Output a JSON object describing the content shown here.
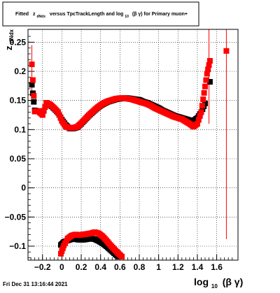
{
  "footer": {
    "timestamp": "Fri Dec 31 13:16:44 2021"
  },
  "chart_data": {
    "type": "scatter",
    "title_parts": {
      "a": "Fitted",
      "b": "z",
      "b_sub": "dNdx",
      "c": "versus TpcTrackLength and log",
      "c_sub": "10",
      "d": "(β γ) for Primary muon+"
    },
    "ylabel": {
      "main": "z",
      "sub": "dNdx"
    },
    "xlabel": {
      "main": "log",
      "sub": "10",
      "tail": "(β γ)"
    },
    "xlim": [
      -0.35,
      1.82
    ],
    "ylim": [
      -0.124,
      0.272
    ],
    "xticks": [
      -0.2,
      0,
      0.2,
      0.4,
      0.6,
      0.8,
      1,
      1.2,
      1.4,
      1.6
    ],
    "xtick_labels": [
      "−0.2",
      "0",
      "0.2",
      "0.4",
      "0.6",
      "0.8",
      "1",
      "1.2",
      "1.4",
      "1.6"
    ],
    "yticks": [
      -0.1,
      -0.05,
      0,
      0.05,
      0.1,
      0.15,
      0.2,
      0.25
    ],
    "ytick_labels": [
      "−0.1",
      "−0.05",
      "0",
      "0.05",
      "0.1",
      "0.15",
      "0.2",
      "0.25"
    ],
    "grid": true,
    "colors": {
      "series_black": "#000000",
      "series_red": "#ff0000"
    },
    "series": [
      {
        "color": "#000000",
        "upper": [
          [
            -0.31,
            0.177
          ],
          [
            -0.28,
            0.133
          ],
          [
            -0.24,
            0.131
          ],
          [
            -0.2,
            0.126
          ],
          [
            -0.16,
            0.145
          ],
          [
            -0.12,
            0.142
          ],
          [
            -0.08,
            0.136
          ],
          [
            -0.04,
            0.129
          ],
          [
            0.0,
            0.117
          ],
          [
            0.04,
            0.108
          ],
          [
            0.08,
            0.102
          ],
          [
            0.12,
            0.102
          ],
          [
            0.16,
            0.104
          ],
          [
            0.2,
            0.11
          ],
          [
            0.24,
            0.117
          ],
          [
            0.28,
            0.124
          ],
          [
            0.32,
            0.13
          ],
          [
            0.36,
            0.136
          ],
          [
            0.4,
            0.141
          ],
          [
            0.44,
            0.145
          ],
          [
            0.48,
            0.148
          ],
          [
            0.52,
            0.15
          ],
          [
            0.56,
            0.152
          ],
          [
            0.6,
            0.153
          ],
          [
            0.64,
            0.154
          ],
          [
            0.68,
            0.154
          ],
          [
            0.72,
            0.153
          ],
          [
            0.76,
            0.152
          ],
          [
            0.8,
            0.151
          ],
          [
            0.84,
            0.148
          ],
          [
            0.88,
            0.146
          ],
          [
            0.92,
            0.143
          ],
          [
            0.96,
            0.14
          ],
          [
            1.0,
            0.137
          ],
          [
            1.04,
            0.133
          ],
          [
            1.08,
            0.13
          ],
          [
            1.12,
            0.127
          ],
          [
            1.16,
            0.124
          ],
          [
            1.2,
            0.122
          ],
          [
            1.24,
            0.12
          ],
          [
            1.28,
            0.118
          ],
          [
            1.32,
            0.116
          ],
          [
            1.36,
            0.115
          ],
          [
            1.4,
            0.12
          ],
          [
            1.44,
            0.13
          ],
          [
            1.48,
            0.145
          ],
          [
            1.53,
            0.182
          ]
        ],
        "lower": [
          [
            -0.01,
            -0.098
          ],
          [
            0.02,
            -0.093
          ],
          [
            0.06,
            -0.09
          ],
          [
            0.1,
            -0.088
          ],
          [
            0.14,
            -0.088
          ],
          [
            0.18,
            -0.089
          ],
          [
            0.22,
            -0.089
          ],
          [
            0.26,
            -0.088
          ],
          [
            0.3,
            -0.087
          ],
          [
            0.34,
            -0.088
          ],
          [
            0.38,
            -0.091
          ],
          [
            0.42,
            -0.095
          ],
          [
            0.46,
            -0.1
          ],
          [
            0.5,
            -0.106
          ],
          [
            0.54,
            -0.112
          ],
          [
            0.58,
            -0.118
          ]
        ]
      },
      {
        "color": "#ff0000",
        "upper": [
          [
            -0.31,
            0.212
          ],
          [
            -0.28,
            0.131
          ],
          [
            -0.24,
            0.132
          ],
          [
            -0.2,
            0.125
          ],
          [
            -0.16,
            0.146
          ],
          [
            -0.12,
            0.143
          ],
          [
            -0.08,
            0.137
          ],
          [
            -0.04,
            0.13
          ],
          [
            0.0,
            0.115
          ],
          [
            0.04,
            0.105
          ],
          [
            0.08,
            0.103
          ],
          [
            0.12,
            0.103
          ],
          [
            0.16,
            0.105
          ],
          [
            0.2,
            0.111
          ],
          [
            0.24,
            0.118
          ],
          [
            0.28,
            0.125
          ],
          [
            0.32,
            0.131
          ],
          [
            0.36,
            0.137
          ],
          [
            0.4,
            0.142
          ],
          [
            0.44,
            0.146
          ],
          [
            0.48,
            0.149
          ],
          [
            0.52,
            0.151
          ],
          [
            0.56,
            0.153
          ],
          [
            0.6,
            0.154
          ],
          [
            0.64,
            0.154
          ],
          [
            0.68,
            0.153
          ],
          [
            0.72,
            0.152
          ],
          [
            0.76,
            0.15
          ],
          [
            0.8,
            0.148
          ],
          [
            0.84,
            0.146
          ],
          [
            0.88,
            0.144
          ],
          [
            0.92,
            0.141
          ],
          [
            0.96,
            0.137
          ],
          [
            1.0,
            0.134
          ],
          [
            1.04,
            0.131
          ],
          [
            1.08,
            0.128
          ],
          [
            1.12,
            0.125
          ],
          [
            1.16,
            0.122
          ],
          [
            1.2,
            0.12
          ],
          [
            1.24,
            0.118
          ],
          [
            1.28,
            0.114
          ],
          [
            1.32,
            0.11
          ],
          [
            1.36,
            0.105
          ],
          [
            1.4,
            0.11
          ],
          [
            1.44,
            0.13
          ],
          [
            1.47,
            0.163
          ],
          [
            1.5,
            0.196
          ],
          [
            1.53,
            0.218
          ],
          [
            1.7,
            0.235
          ]
        ],
        "lower": [
          [
            -0.01,
            -0.113
          ],
          [
            0.02,
            -0.099
          ],
          [
            0.06,
            -0.087
          ],
          [
            0.1,
            -0.082
          ],
          [
            0.14,
            -0.08
          ],
          [
            0.18,
            -0.081
          ],
          [
            0.22,
            -0.08
          ],
          [
            0.26,
            -0.079
          ],
          [
            0.3,
            -0.078
          ],
          [
            0.34,
            -0.076
          ],
          [
            0.38,
            -0.078
          ],
          [
            0.42,
            -0.083
          ],
          [
            0.46,
            -0.09
          ],
          [
            0.5,
            -0.098
          ],
          [
            0.54,
            -0.105
          ],
          [
            0.58,
            -0.112
          ],
          [
            0.62,
            -0.118
          ]
        ]
      }
    ],
    "error_bars": [
      {
        "x": -0.31,
        "y_low": 0.165,
        "y_high": 0.245,
        "color": "#ff0000"
      },
      {
        "x": 1.52,
        "y_low": 0.11,
        "y_high": 0.272,
        "color": "#ff0000"
      },
      {
        "x": 1.7,
        "y_low": -0.088,
        "y_high": 0.272,
        "color": "#ff0000"
      }
    ]
  }
}
